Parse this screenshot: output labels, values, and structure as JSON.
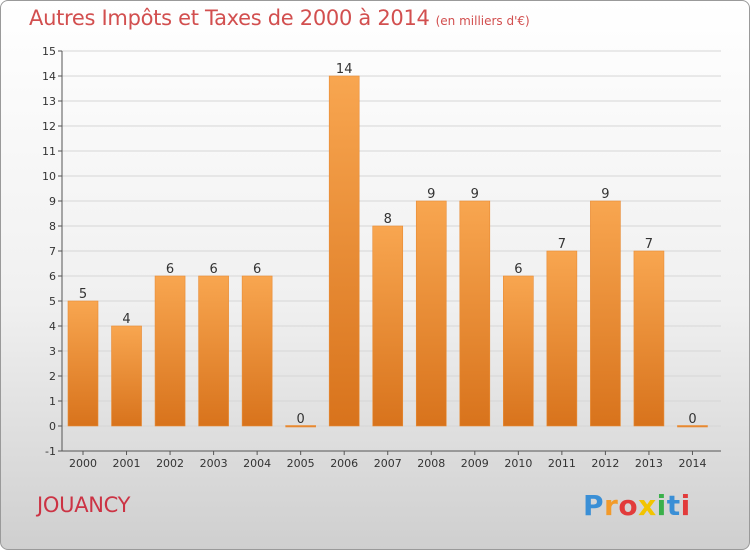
{
  "header": {
    "title": "Autres Impôts et Taxes de 2000 à 2014",
    "unit": "(en milliers d'€)"
  },
  "footer": {
    "town": "JOUANCY",
    "logo": {
      "text": "Proxiti",
      "colors": [
        "#3a8fd6",
        "#f29a2a",
        "#e23b3b",
        "#f2c400",
        "#3ab04a",
        "#3a8fd6",
        "#e23b3b"
      ]
    }
  },
  "colors": {
    "bar_top": "#f8a650",
    "bar_bottom": "#d8731c",
    "title": "#d24f4f",
    "town": "#cc3344"
  },
  "chart_data": {
    "type": "bar",
    "title": "Autres Impôts et Taxes de 2000 à 2014",
    "subtitle": "(en milliers d'€)",
    "categories": [
      "2000",
      "2001",
      "2002",
      "2003",
      "2004",
      "2005",
      "2006",
      "2007",
      "2008",
      "2009",
      "2010",
      "2011",
      "2012",
      "2013",
      "2014"
    ],
    "values": [
      5,
      4,
      6,
      6,
      6,
      0,
      14,
      8,
      9,
      9,
      6,
      7,
      9,
      7,
      0
    ],
    "data_labels": [
      "5",
      "4",
      "6",
      "6",
      "6",
      "0",
      "14",
      "8",
      "9",
      "9",
      "6",
      "7",
      "9",
      "7",
      "0"
    ],
    "ylim": [
      -1,
      15
    ],
    "yticks": [
      -1,
      0,
      1,
      2,
      3,
      4,
      5,
      6,
      7,
      8,
      9,
      10,
      11,
      12,
      13,
      14,
      15
    ],
    "ytick_labels": [
      "-1",
      "0",
      "1",
      "2",
      "3",
      "4",
      "5",
      "6",
      "7",
      "8",
      "9",
      "10",
      "11",
      "12",
      "13",
      "14",
      "15"
    ],
    "grid": true
  }
}
